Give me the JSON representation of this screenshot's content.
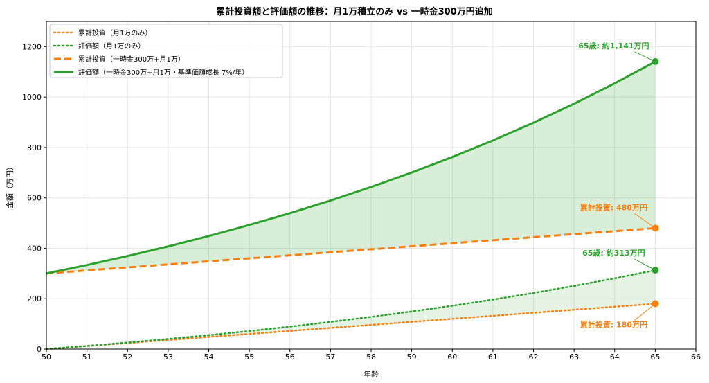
{
  "chart_data": {
    "type": "line",
    "title": "累計投資額と評価額の推移：月1万積立のみ vs 一時金300万円追加",
    "xlabel": "年齢",
    "ylabel": "金額（万円）",
    "xlim": [
      50,
      66
    ],
    "ylim": [
      0,
      1300
    ],
    "xticks": [
      "50",
      "51",
      "52",
      "53",
      "54",
      "55",
      "56",
      "57",
      "58",
      "59",
      "60",
      "61",
      "62",
      "63",
      "64",
      "65",
      "66"
    ],
    "yticks": [
      "0",
      "200",
      "400",
      "600",
      "800",
      "1000",
      "1200"
    ],
    "grid": true,
    "legend_position": "top-left",
    "x": [
      50,
      51,
      52,
      53,
      54,
      55,
      56,
      57,
      58,
      59,
      60,
      61,
      62,
      63,
      64,
      65
    ],
    "series": [
      {
        "name": "累計投資（月1万のみ）",
        "color": "#ff7f0e",
        "style": "dotted",
        "values": [
          0,
          12,
          24,
          36,
          48,
          60,
          72,
          84,
          96,
          108,
          120,
          132,
          144,
          156,
          168,
          180
        ]
      },
      {
        "name": "評価額（月1万のみ）",
        "color": "#2ca02c",
        "style": "dotted",
        "values": [
          0,
          12.5,
          25.8,
          40.0,
          55.3,
          71.6,
          89.1,
          107.8,
          127.8,
          149.2,
          172.0,
          196.5,
          222.7,
          250.8,
          280.8,
          312.9
        ]
      },
      {
        "name": "累計投資（一時金300万+月1万）",
        "color": "#ff7f0e",
        "style": "dashed",
        "values": [
          300,
          312,
          324,
          336,
          348,
          360,
          372,
          384,
          396,
          408,
          420,
          432,
          444,
          456,
          468,
          480
        ]
      },
      {
        "name": "評価額（一時金300万+月1万・基準価額成長 7%/年）",
        "color": "#2ca02c",
        "style": "solid",
        "values": [
          300,
          333.5,
          369.2,
          407.5,
          448.5,
          492.4,
          539.3,
          589.5,
          643.2,
          700.7,
          762.2,
          828.0,
          898.4,
          973.7,
          1054.3,
          1140.6
        ]
      }
    ],
    "annotations": [
      {
        "text": "65歳: 約1,141万円",
        "color": "#2ca02c",
        "x": 65,
        "y": 1141
      },
      {
        "text": "累計投資: 480万円",
        "color": "#ff7f0e",
        "x": 65,
        "y": 480
      },
      {
        "text": "65歳: 約313万円",
        "color": "#2ca02c",
        "x": 65,
        "y": 313
      },
      {
        "text": "累計投資: 180万円",
        "color": "#ff7f0e",
        "x": 65,
        "y": 180
      }
    ]
  }
}
